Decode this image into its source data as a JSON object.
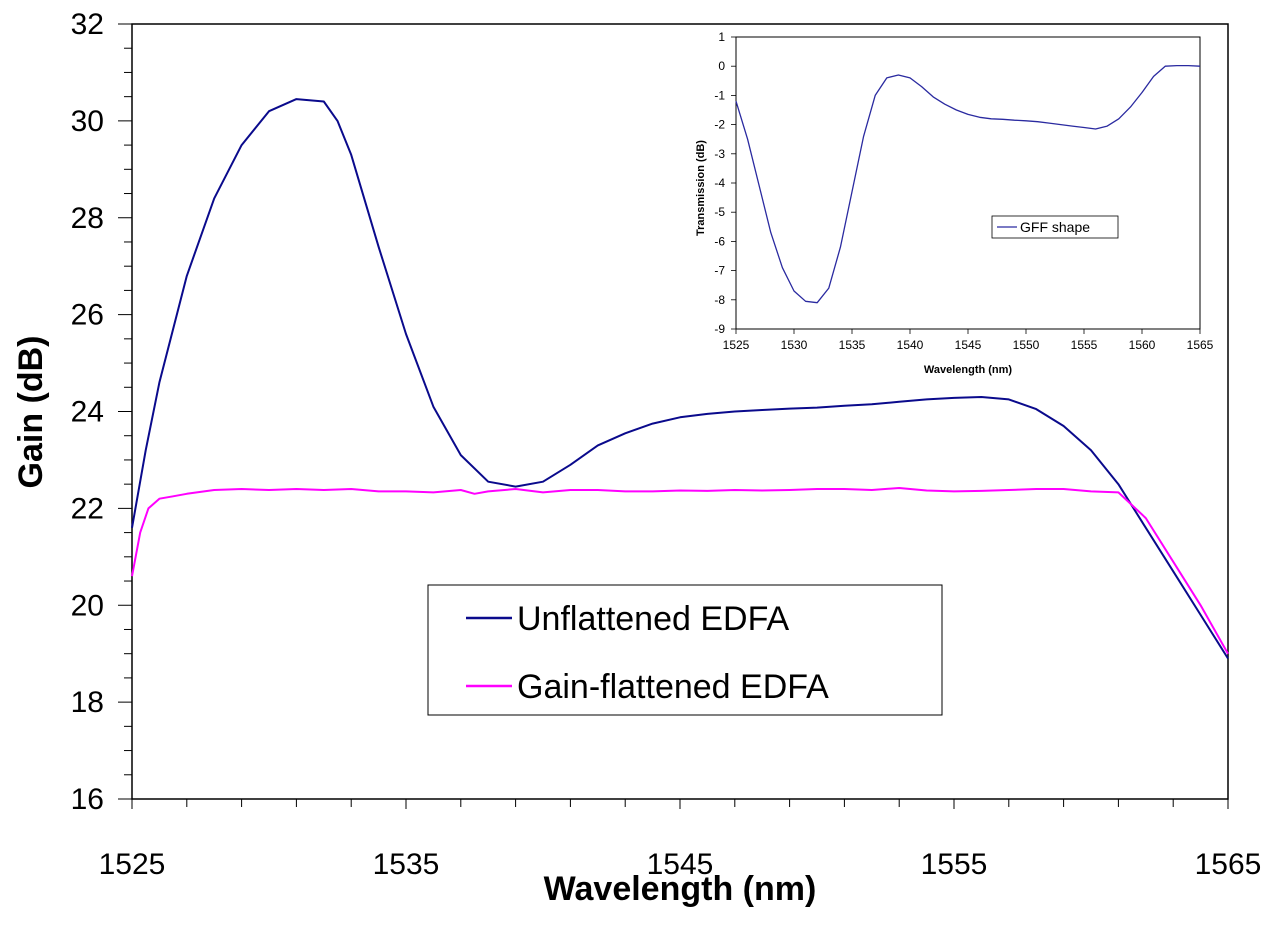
{
  "chart_data": [
    {
      "type": "line",
      "xlabel": "Wavelength (nm)",
      "ylabel": "Gain (dB)",
      "xlim": [
        1525,
        1565
      ],
      "ylim": [
        16,
        32
      ],
      "xticks": [
        1525,
        1535,
        1545,
        1555,
        1565
      ],
      "yticks": [
        16,
        18,
        20,
        22,
        24,
        26,
        28,
        30,
        32
      ],
      "grid": false,
      "legend": "center-bottom",
      "series": [
        {
          "name": "Unflattened EDFA",
          "color": "#0a0a8c",
          "x": [
            1525,
            1525.5,
            1526,
            1527,
            1528,
            1529,
            1530,
            1531,
            1532,
            1532.5,
            1533,
            1534,
            1535,
            1536,
            1537,
            1538,
            1539,
            1540,
            1541,
            1542,
            1543,
            1544,
            1545,
            1546,
            1547,
            1548,
            1549,
            1550,
            1551,
            1552,
            1553,
            1554,
            1555,
            1556,
            1557,
            1558,
            1559,
            1560,
            1561,
            1562,
            1563,
            1564,
            1565
          ],
          "y": [
            21.6,
            23.2,
            24.6,
            26.8,
            28.4,
            29.5,
            30.2,
            30.45,
            30.4,
            30.0,
            29.3,
            27.4,
            25.6,
            24.1,
            23.1,
            22.55,
            22.45,
            22.55,
            22.9,
            23.3,
            23.55,
            23.75,
            23.88,
            23.95,
            24.0,
            24.03,
            24.06,
            24.08,
            24.12,
            24.15,
            24.2,
            24.25,
            24.28,
            24.3,
            24.25,
            24.05,
            23.7,
            23.2,
            22.5,
            21.6,
            20.7,
            19.8,
            18.9
          ]
        },
        {
          "name": "Gain-flattened EDFA",
          "color": "#ff00ff",
          "x": [
            1525,
            1525.3,
            1525.6,
            1526,
            1526.5,
            1527,
            1528,
            1529,
            1530,
            1531,
            1532,
            1533,
            1534,
            1535,
            1536,
            1537,
            1537.5,
            1538,
            1539,
            1540,
            1541,
            1542,
            1543,
            1544,
            1545,
            1546,
            1547,
            1548,
            1549,
            1550,
            1551,
            1552,
            1553,
            1554,
            1555,
            1556,
            1557,
            1558,
            1559,
            1560,
            1561,
            1562,
            1563,
            1564,
            1565
          ],
          "y": [
            20.6,
            21.5,
            22.0,
            22.2,
            22.25,
            22.3,
            22.38,
            22.4,
            22.38,
            22.4,
            22.38,
            22.4,
            22.35,
            22.35,
            22.33,
            22.38,
            22.3,
            22.35,
            22.4,
            22.33,
            22.38,
            22.38,
            22.35,
            22.35,
            22.37,
            22.36,
            22.38,
            22.37,
            22.38,
            22.4,
            22.4,
            22.38,
            22.42,
            22.37,
            22.35,
            22.36,
            22.38,
            22.4,
            22.4,
            22.35,
            22.33,
            21.8,
            20.9,
            20.0,
            19.0
          ]
        }
      ]
    },
    {
      "type": "line",
      "xlabel": "Wavelength (nm)",
      "ylabel": "Transmission (dB)",
      "xlim": [
        1525,
        1565
      ],
      "ylim": [
        -9,
        1
      ],
      "xticks": [
        1525,
        1530,
        1535,
        1540,
        1545,
        1550,
        1555,
        1560,
        1565
      ],
      "yticks": [
        1,
        0,
        -1,
        -2,
        -3,
        -4,
        -5,
        -6,
        -7,
        -8,
        -9
      ],
      "grid": false,
      "legend": "center-right",
      "series": [
        {
          "name": "GFF shape",
          "color": "#2a2aa0",
          "x": [
            1525,
            1526,
            1527,
            1528,
            1529,
            1530,
            1531,
            1532,
            1533,
            1534,
            1535,
            1536,
            1537,
            1538,
            1539,
            1540,
            1541,
            1542,
            1543,
            1544,
            1545,
            1546,
            1547,
            1548,
            1549,
            1550,
            1551,
            1552,
            1553,
            1554,
            1555,
            1556,
            1557,
            1558,
            1559,
            1560,
            1561,
            1562,
            1563,
            1564,
            1565
          ],
          "y": [
            -1.2,
            -2.5,
            -4.1,
            -5.7,
            -6.9,
            -7.7,
            -8.05,
            -8.1,
            -7.6,
            -6.2,
            -4.3,
            -2.4,
            -1.0,
            -0.4,
            -0.3,
            -0.4,
            -0.7,
            -1.05,
            -1.3,
            -1.5,
            -1.65,
            -1.75,
            -1.8,
            -1.82,
            -1.85,
            -1.87,
            -1.9,
            -1.95,
            -2.0,
            -2.05,
            -2.1,
            -2.15,
            -2.05,
            -1.8,
            -1.4,
            -0.9,
            -0.35,
            0.0,
            0.02,
            0.02,
            0.0
          ]
        }
      ]
    }
  ]
}
